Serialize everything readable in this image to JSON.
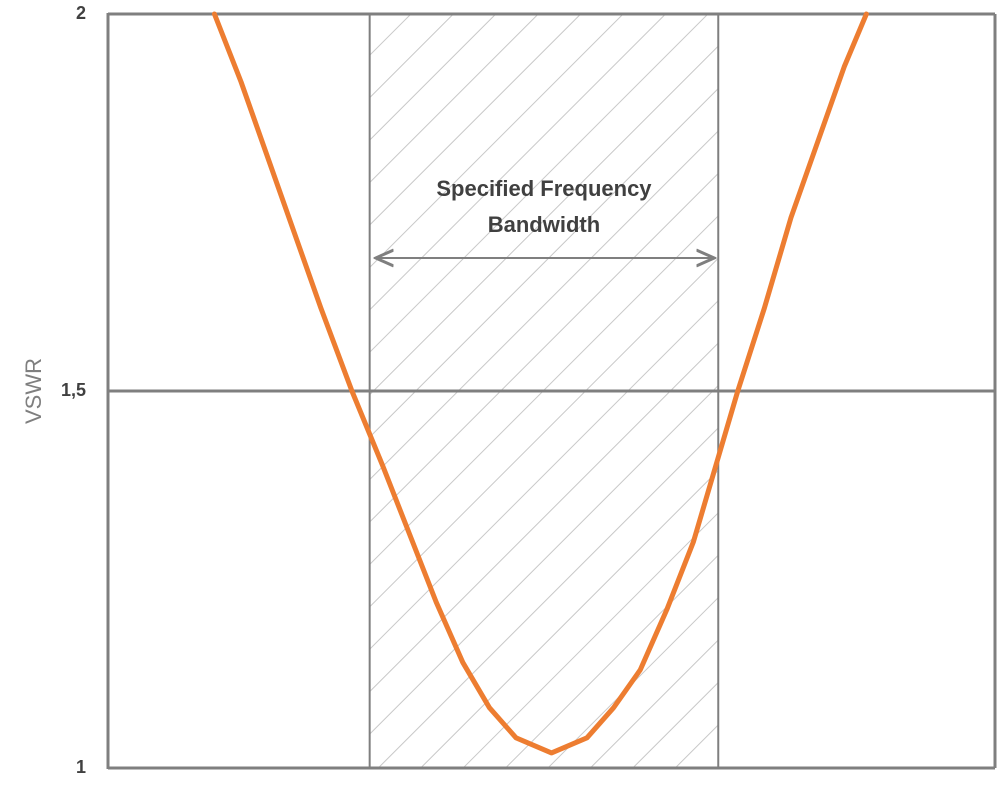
{
  "chart_data": {
    "type": "line",
    "y_label": "VSWR",
    "annotation": [
      "Specified Frequency",
      "Bandwidth"
    ],
    "x": [
      12,
      15,
      18,
      21,
      24,
      27.5,
      31,
      34,
      37,
      40,
      43,
      46,
      50,
      54,
      57,
      60,
      63,
      66,
      69,
      71,
      74,
      77,
      80,
      83,
      85.5
    ],
    "series": [
      {
        "color": "#ed7d31",
        "values": [
          2.0,
          1.91,
          1.81,
          1.71,
          1.61,
          1.5,
          1.4,
          1.31,
          1.22,
          1.14,
          1.08,
          1.04,
          1.02,
          1.04,
          1.08,
          1.13,
          1.21,
          1.3,
          1.42,
          1.5,
          1.61,
          1.73,
          1.83,
          1.93,
          2.0
        ]
      }
    ],
    "highlight_x": [
      29.5,
      68.8
    ],
    "xlim": [
      0,
      100
    ],
    "ylim": [
      1,
      2
    ],
    "yticks": [
      1,
      {
        "value": 1.5,
        "label": "1,5"
      },
      2
    ],
    "grid": true
  }
}
